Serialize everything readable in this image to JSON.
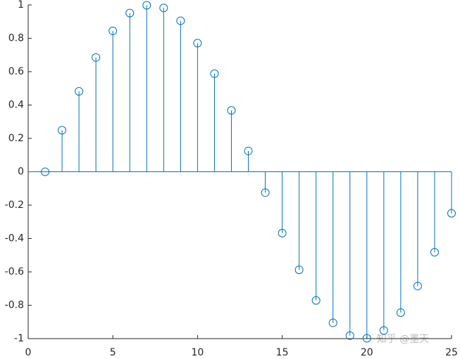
{
  "chart_data": {
    "type": "stem",
    "x": [
      1,
      2,
      3,
      4,
      5,
      6,
      7,
      8,
      9,
      10,
      11,
      12,
      13,
      14,
      15,
      16,
      17,
      18,
      19,
      20,
      21,
      22,
      23,
      24,
      25
    ],
    "values": [
      0,
      0.249,
      0.482,
      0.685,
      0.844,
      0.951,
      0.998,
      0.982,
      0.905,
      0.771,
      0.588,
      0.368,
      0.125,
      -0.125,
      -0.368,
      -0.588,
      -0.771,
      -0.905,
      -0.982,
      -0.998,
      -0.951,
      -0.844,
      -0.685,
      -0.482,
      -0.249
    ],
    "color": "#0072bd",
    "xlim": [
      0,
      25
    ],
    "xticks": [
      0,
      5,
      10,
      15,
      20,
      25
    ],
    "ylim": [
      -1,
      1
    ],
    "yticks": [
      -1,
      -0.8,
      -0.6,
      -0.4,
      -0.2,
      0,
      0.2,
      0.4,
      0.6,
      0.8,
      1
    ],
    "grid": false,
    "annotation": "知乎 @墨天"
  }
}
